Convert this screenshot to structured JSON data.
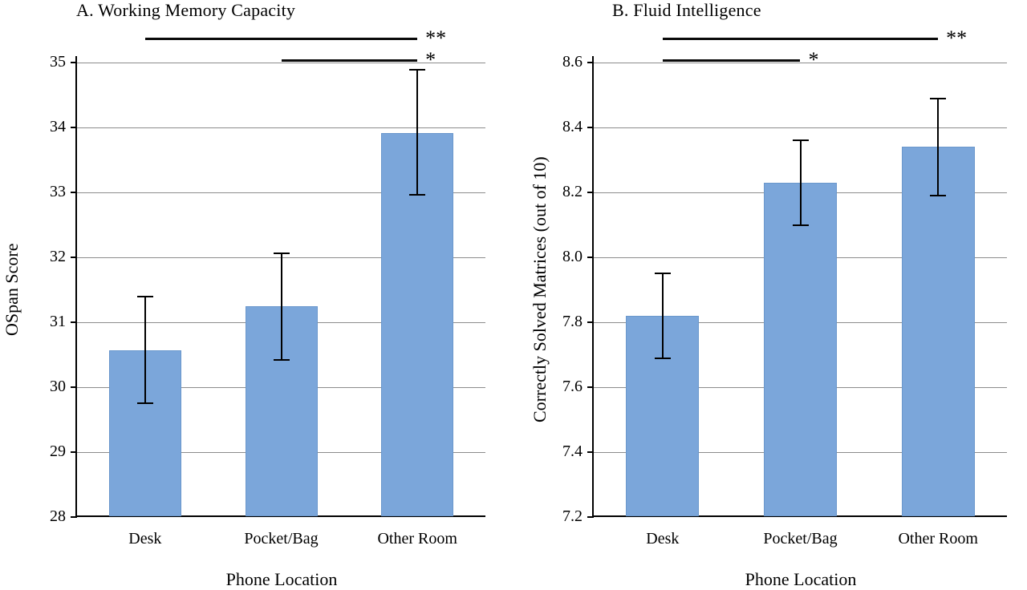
{
  "page": {
    "background": "#ffffff"
  },
  "chart_data": [
    {
      "type": "bar",
      "title": "A. Working Memory Capacity",
      "xlabel": "Phone Location",
      "ylabel": "OSpan Score",
      "categories": [
        "Desk",
        "Pocket/Bag",
        "Other Room"
      ],
      "values": [
        30.57,
        31.25,
        33.91
      ],
      "error_low": [
        29.75,
        30.42,
        32.96
      ],
      "error_high": [
        31.4,
        32.06,
        34.89
      ],
      "ylim": [
        28,
        35
      ],
      "yticks": [
        28,
        29,
        30,
        31,
        32,
        33,
        34,
        35
      ],
      "ytick_labels": [
        "28",
        "29",
        "30",
        "31",
        "32",
        "33",
        "34",
        "35"
      ],
      "grid": true,
      "legend": "none",
      "bar_color": "#7ba6da",
      "significance": [
        {
          "from": "Desk",
          "to": "Other Room",
          "from_index": 0,
          "to_index": 2,
          "label": "**",
          "level": 0
        },
        {
          "from": "Pocket/Bag",
          "to": "Other Room",
          "from_index": 1,
          "to_index": 2,
          "label": "*",
          "level": 1
        }
      ]
    },
    {
      "type": "bar",
      "title": "B. Fluid Intelligence",
      "xlabel": "Phone Location",
      "ylabel": "Correctly Solved Matrices (out of 10)",
      "categories": [
        "Desk",
        "Pocket/Bag",
        "Other Room"
      ],
      "values": [
        7.82,
        8.23,
        8.34
      ],
      "error_low": [
        7.69,
        8.1,
        8.19
      ],
      "error_high": [
        7.95,
        8.36,
        8.49
      ],
      "ylim": [
        7.2,
        8.6
      ],
      "yticks": [
        7.2,
        7.4,
        7.6,
        7.8,
        8.0,
        8.2,
        8.4,
        8.6
      ],
      "ytick_labels": [
        "7.2",
        "7.4",
        "7.6",
        "7.8",
        "8.0",
        "8.2",
        "8.4",
        "8.6"
      ],
      "grid": true,
      "legend": "none",
      "bar_color": "#7ba6da",
      "significance": [
        {
          "from": "Desk",
          "to": "Other Room",
          "from_index": 0,
          "to_index": 2,
          "label": "**",
          "level": 0
        },
        {
          "from": "Desk",
          "to": "Pocket/Bag",
          "from_index": 0,
          "to_index": 1,
          "label": "*",
          "level": 1
        }
      ]
    }
  ]
}
